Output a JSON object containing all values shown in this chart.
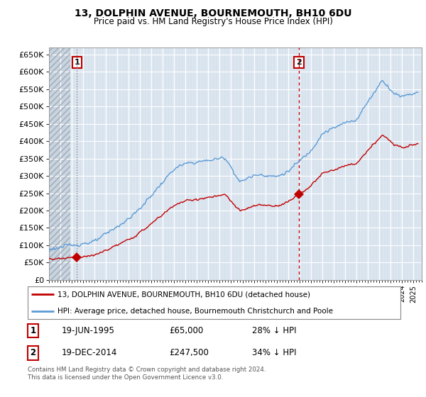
{
  "title": "13, DOLPHIN AVENUE, BOURNEMOUTH, BH10 6DU",
  "subtitle": "Price paid vs. HM Land Registry's House Price Index (HPI)",
  "ytick_values": [
    0,
    50000,
    100000,
    150000,
    200000,
    250000,
    300000,
    350000,
    400000,
    450000,
    500000,
    550000,
    600000,
    650000
  ],
  "ylim": [
    0,
    670000
  ],
  "xlim_start": 1993.0,
  "xlim_end": 2025.5,
  "sale1_year": 1995.46,
  "sale1_price": 65000,
  "sale2_year": 2014.96,
  "sale2_price": 247500,
  "legend_line1": "13, DOLPHIN AVENUE, BOURNEMOUTH, BH10 6DU (detached house)",
  "legend_line2": "HPI: Average price, detached house, Bournemouth Christchurch and Poole",
  "note1_label": "1",
  "note1_date": "19-JUN-1995",
  "note1_price": "£65,000",
  "note1_hpi": "28% ↓ HPI",
  "note2_label": "2",
  "note2_date": "19-DEC-2014",
  "note2_price": "£247,500",
  "note2_hpi": "34% ↓ HPI",
  "copyright_text": "Contains HM Land Registry data © Crown copyright and database right 2024.\nThis data is licensed under the Open Government Licence v3.0.",
  "hpi_color": "#5b9bd5",
  "sale_color": "#c00000",
  "bg_color": "#dce6f1",
  "hatch_bg": "#d0d8e4"
}
